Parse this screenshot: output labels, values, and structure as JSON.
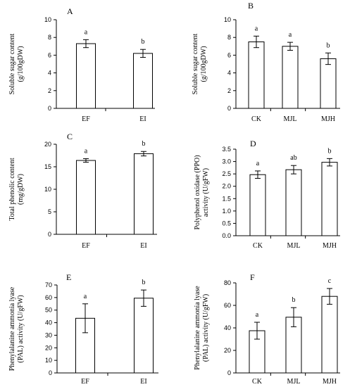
{
  "chart_data": [
    {
      "panel": "A",
      "type": "bar",
      "ylabel": "Soluble sugar content (g/100gDW)",
      "categories": [
        "EF",
        "EI"
      ],
      "values": [
        7.3,
        6.2
      ],
      "errors": [
        0.45,
        0.45
      ],
      "significance": [
        "a",
        "b"
      ],
      "ylim": [
        0,
        10
      ],
      "yticks": [
        0,
        2,
        4,
        6,
        8,
        10
      ],
      "ytick_labels": [
        "0",
        "2",
        "4",
        "6",
        "8",
        "10"
      ]
    },
    {
      "panel": "B",
      "type": "bar",
      "ylabel": "Soluble sugar content (g/100gDW)",
      "categories": [
        "CK",
        "MJL",
        "MJH"
      ],
      "values": [
        7.5,
        7.0,
        5.6
      ],
      "errors": [
        0.65,
        0.45,
        0.65
      ],
      "significance": [
        "a",
        "a",
        "b"
      ],
      "ylim": [
        0,
        10
      ],
      "yticks": [
        0,
        2,
        4,
        6,
        8,
        10
      ],
      "ytick_labels": [
        "0",
        "2",
        "4",
        "6",
        "8",
        "10"
      ]
    },
    {
      "panel": "C",
      "type": "bar",
      "ylabel": "Total phenolic content (mg/gDW)",
      "categories": [
        "EF",
        "EI"
      ],
      "values": [
        16.4,
        17.9
      ],
      "errors": [
        0.4,
        0.5
      ],
      "significance": [
        "a",
        "b"
      ],
      "ylim": [
        0,
        20
      ],
      "yticks": [
        0,
        5,
        10,
        15,
        20
      ],
      "ytick_labels": [
        "0",
        "5",
        "10",
        "15",
        "20"
      ]
    },
    {
      "panel": "D",
      "type": "bar",
      "ylabel": "Polyphenol oxidase (PPO) activity (U/gFW)",
      "categories": [
        "CK",
        "MJL",
        "MJH"
      ],
      "values": [
        2.47,
        2.67,
        2.97
      ],
      "errors": [
        0.15,
        0.17,
        0.15
      ],
      "significance": [
        "a",
        "ab",
        "b"
      ],
      "ylim": [
        0,
        3.5
      ],
      "yticks": [
        0,
        0.5,
        1.0,
        1.5,
        2.0,
        2.5,
        3.0,
        3.5
      ],
      "ytick_labels": [
        "0.0",
        "0.5",
        "1.0",
        "1.5",
        "2.0",
        "2.5",
        "3.0",
        "3.5"
      ]
    },
    {
      "panel": "E",
      "type": "bar",
      "ylabel": "Phenylalanine ammonia lyase (PAL) activity (U/gFW)",
      "categories": [
        "EF",
        "EI"
      ],
      "values": [
        43.5,
        59.5
      ],
      "errors": [
        11.5,
        6.5
      ],
      "significance": [
        "a",
        "b"
      ],
      "ylim": [
        0,
        70
      ],
      "yticks": [
        0,
        10,
        20,
        30,
        40,
        50,
        60,
        70
      ],
      "ytick_labels": [
        "0",
        "10",
        "20",
        "30",
        "40",
        "50",
        "60",
        "70"
      ]
    },
    {
      "panel": "F",
      "type": "bar",
      "ylabel": "Phenylalanine ammonia lyase (PAL) activity (U/gFW)",
      "categories": [
        "CK",
        "MJL",
        "MJH"
      ],
      "values": [
        37.5,
        49.5,
        68.0
      ],
      "errors": [
        7.5,
        8.5,
        7.0
      ],
      "significance": [
        "a",
        "b",
        "c"
      ],
      "ylim": [
        0,
        80
      ],
      "yticks": [
        0,
        20,
        40,
        60,
        80
      ],
      "ytick_labels": [
        "0",
        "20",
        "40",
        "60",
        "80"
      ]
    }
  ],
  "ylabel_lines": {
    "A": [
      "Soluble sugar content",
      "(g/100gDW)"
    ],
    "B": [
      "Soluble sugar content",
      "(g/100gDW)"
    ],
    "C": [
      "Total phenolic content",
      "(mg/gDW)"
    ],
    "D": [
      "Polyphenol oxidase (PPO)",
      "activity (U/gFW)"
    ],
    "E": [
      "Phenylalanine ammonia lyase",
      "(PAL) activity (U/gFW)"
    ],
    "F": [
      "Phenylalanine ammonia lyase",
      "(PAL) activity (U/gFW)"
    ]
  },
  "style": {
    "bar_fill": "#ffffff",
    "stroke": "#000000"
  }
}
